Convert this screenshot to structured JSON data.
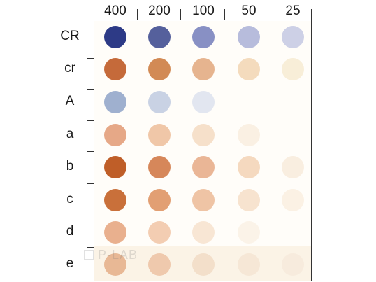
{
  "columns": [
    "400",
    "200",
    "100",
    "50",
    "25"
  ],
  "rows": [
    "CR",
    "cr",
    "A",
    "a",
    "b",
    "c",
    "d",
    "e"
  ],
  "watermark": "P-LAB",
  "colors": {
    "axis": "#333333",
    "membrane": "#fffdf9"
  },
  "dots": [
    [
      "#2d3a86",
      "#55609c",
      "#8890c4",
      "#b7bcdc",
      "#cdd0e6"
    ],
    [
      "#c56a3a",
      "#d28a55",
      "#e6b48f",
      "#f4dbbd",
      "#f8eed8"
    ],
    [
      "#9fb0cf",
      "#c9d2e4",
      "#e2e6f0",
      "",
      ""
    ],
    [
      "#e6a887",
      "#f0c7a8",
      "#f6e0ca",
      "#faf0e3",
      ""
    ],
    [
      "#bf5e28",
      "#d6875a",
      "#eab696",
      "#f5d9bf",
      "#f9eee0"
    ],
    [
      "#c9703a",
      "#e29f73",
      "#efc4a5",
      "#f7e3cf",
      "#fbf1e4"
    ],
    [
      "#e9b08e",
      "#f3cdb2",
      "#f8e6d4",
      "#fbf3e8",
      ""
    ],
    [
      "#e8b895",
      "#efc9ad",
      "#f3dfca",
      "#f6e7d6",
      "#f7ebdd"
    ]
  ]
}
